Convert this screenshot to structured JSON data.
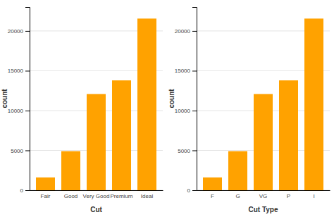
{
  "chart_data": [
    {
      "type": "bar",
      "categories": [
        "Fair",
        "Good",
        "Very Good",
        "Premium",
        "Ideal"
      ],
      "values": [
        1610,
        4906,
        12082,
        13791,
        21551
      ],
      "color": "#FFA200",
      "xlabel": "Cut",
      "ylabel": "count",
      "ylim": [
        0,
        23000
      ],
      "yticks": [
        0,
        5000,
        10000,
        15000,
        20000
      ],
      "grid": true
    },
    {
      "type": "bar",
      "categories": [
        "F",
        "G",
        "VG",
        "P",
        "I"
      ],
      "values": [
        1610,
        4906,
        12082,
        13791,
        21551
      ],
      "color": "#FFA200",
      "xlabel": "Cut Type",
      "ylabel": "count",
      "ylim": [
        0,
        23000
      ],
      "yticks": [
        0,
        5000,
        10000,
        15000,
        20000
      ],
      "grid": true
    }
  ]
}
